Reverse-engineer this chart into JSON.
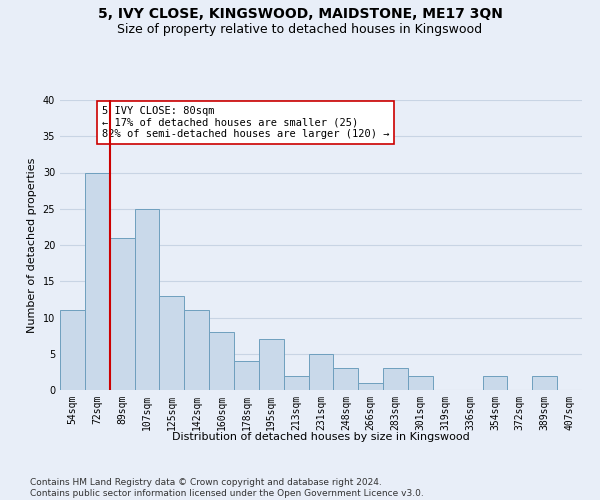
{
  "title": "5, IVY CLOSE, KINGSWOOD, MAIDSTONE, ME17 3QN",
  "subtitle": "Size of property relative to detached houses in Kingswood",
  "xlabel": "Distribution of detached houses by size in Kingswood",
  "ylabel": "Number of detached properties",
  "categories": [
    "54sqm",
    "72sqm",
    "89sqm",
    "107sqm",
    "125sqm",
    "142sqm",
    "160sqm",
    "178sqm",
    "195sqm",
    "213sqm",
    "231sqm",
    "248sqm",
    "266sqm",
    "283sqm",
    "301sqm",
    "319sqm",
    "336sqm",
    "354sqm",
    "372sqm",
    "389sqm",
    "407sqm"
  ],
  "values": [
    11,
    30,
    21,
    25,
    13,
    11,
    8,
    4,
    7,
    2,
    5,
    3,
    1,
    3,
    2,
    0,
    0,
    2,
    0,
    2,
    0
  ],
  "bar_color": "#c9d9ea",
  "bar_edge_color": "#6e9fbe",
  "vline_x_index": 1,
  "vline_color": "#cc0000",
  "annotation_text": "5 IVY CLOSE: 80sqm\n← 17% of detached houses are smaller (25)\n82% of semi-detached houses are larger (120) →",
  "annotation_box_color": "#ffffff",
  "annotation_box_edge": "#cc0000",
  "ylim": [
    0,
    40
  ],
  "yticks": [
    0,
    5,
    10,
    15,
    20,
    25,
    30,
    35,
    40
  ],
  "grid_color": "#c8d4e4",
  "background_color": "#e8eef8",
  "footer_line1": "Contains HM Land Registry data © Crown copyright and database right 2024.",
  "footer_line2": "Contains public sector information licensed under the Open Government Licence v3.0.",
  "title_fontsize": 10,
  "subtitle_fontsize": 9,
  "xlabel_fontsize": 8,
  "ylabel_fontsize": 8,
  "annotation_fontsize": 7.5,
  "tick_fontsize": 7,
  "footer_fontsize": 6.5
}
